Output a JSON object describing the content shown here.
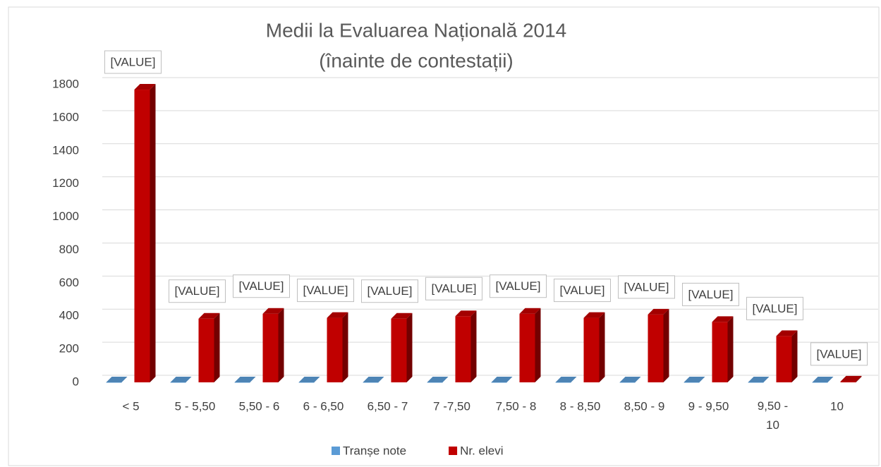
{
  "chart_data": {
    "type": "bar3d",
    "title": "Medii la Evaluarea Națională 2014",
    "subtitle": "(înainte de contestații)",
    "categories": [
      "< 5",
      "5 - 5,50",
      "5,50 - 6",
      "6 - 6,50",
      "6,50 - 7",
      "7 -7,50",
      "7,50 - 8",
      "8 - 8,50",
      "8,50 - 9",
      "9 - 9,50",
      "9,50 - 10",
      "10"
    ],
    "series": [
      {
        "name": "Tranșe note",
        "color": "#5b9bd5",
        "values": [
          0,
          0,
          0,
          0,
          0,
          0,
          0,
          0,
          0,
          0,
          0,
          0
        ]
      },
      {
        "name": "Nr. elevi",
        "color": "#c00000",
        "values": [
          1770,
          385,
          415,
          390,
          385,
          400,
          415,
          390,
          410,
          365,
          280,
          5
        ],
        "value_labels": [
          "[VALUE]",
          "[VALUE]",
          "[VALUE]",
          "[VALUE]",
          "[VALUE]",
          "[VALUE]",
          "[VALUE]",
          "[VALUE]",
          "[VALUE]",
          "[VALUE]",
          "[VALUE]",
          "[VALUE]"
        ]
      }
    ],
    "ylim": [
      0,
      1800
    ],
    "yticks": [
      0,
      200,
      400,
      600,
      800,
      1000,
      1200,
      1400,
      1600,
      1800
    ],
    "grid": true,
    "legend": "bottom"
  }
}
